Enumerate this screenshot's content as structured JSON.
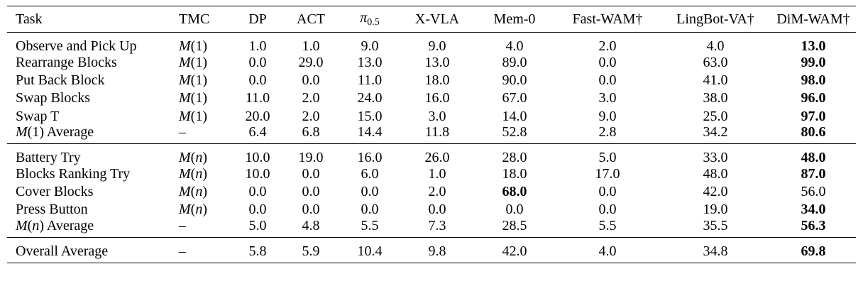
{
  "table": {
    "headers": {
      "task": "Task",
      "tmc": "TMC",
      "dp": "DP",
      "act": "ACT",
      "pi_base": "π",
      "pi_sub": "0.5",
      "xvla": "X-VLA",
      "mem0": "Mem-0",
      "fastwam": "Fast-WAM†",
      "lingbot": "LingBot-VA†",
      "dimwam": "DiM-WAM†"
    },
    "groups": [
      {
        "rows": [
          {
            "task": "Observe and Pick Up",
            "tmc": "M(1)",
            "values": [
              "1.0",
              "1.0",
              "9.0",
              "9.0",
              "4.0",
              "2.0",
              "4.0",
              "13.0"
            ],
            "best": 7
          },
          {
            "task": "Rearrange Blocks",
            "tmc": "M(1)",
            "values": [
              "0.0",
              "29.0",
              "13.0",
              "13.0",
              "89.0",
              "0.0",
              "63.0",
              "99.0"
            ],
            "best": 7
          },
          {
            "task": "Put Back Block",
            "tmc": "M(1)",
            "values": [
              "0.0",
              "0.0",
              "11.0",
              "18.0",
              "90.0",
              "0.0",
              "41.0",
              "98.0"
            ],
            "best": 7
          },
          {
            "task": "Swap Blocks",
            "tmc": "M(1)",
            "values": [
              "11.0",
              "2.0",
              "24.0",
              "16.0",
              "67.0",
              "3.0",
              "38.0",
              "96.0"
            ],
            "best": 7
          },
          {
            "task": "Swap T",
            "tmc": "M(1)",
            "values": [
              "20.0",
              "2.0",
              "15.0",
              "3.0",
              "14.0",
              "9.0",
              "25.0",
              "97.0"
            ],
            "best": 7
          },
          {
            "task": "M(1) Average",
            "tmc": "–",
            "values": [
              "6.4",
              "6.8",
              "14.4",
              "11.8",
              "52.8",
              "2.8",
              "34.2",
              "80.6"
            ],
            "best": 7
          }
        ]
      },
      {
        "rows": [
          {
            "task": "Battery Try",
            "tmc": "M(n)",
            "values": [
              "10.0",
              "19.0",
              "16.0",
              "26.0",
              "28.0",
              "5.0",
              "33.0",
              "48.0"
            ],
            "best": 7
          },
          {
            "task": "Blocks Ranking Try",
            "tmc": "M(n)",
            "values": [
              "10.0",
              "0.0",
              "6.0",
              "1.0",
              "18.0",
              "17.0",
              "48.0",
              "87.0"
            ],
            "best": 7
          },
          {
            "task": "Cover Blocks",
            "tmc": "M(n)",
            "values": [
              "0.0",
              "0.0",
              "0.0",
              "2.0",
              "68.0",
              "0.0",
              "42.0",
              "56.0"
            ],
            "best": 4
          },
          {
            "task": "Press Button",
            "tmc": "M(n)",
            "values": [
              "0.0",
              "0.0",
              "0.0",
              "0.0",
              "0.0",
              "0.0",
              "19.0",
              "34.0"
            ],
            "best": 7
          },
          {
            "task": "M(n) Average",
            "tmc": "–",
            "values": [
              "5.0",
              "4.8",
              "5.5",
              "7.3",
              "28.5",
              "5.5",
              "35.5",
              "56.3"
            ],
            "best": 7
          }
        ]
      },
      {
        "rows": [
          {
            "task": "Overall Average",
            "tmc": "–",
            "values": [
              "5.8",
              "5.9",
              "10.4",
              "9.8",
              "42.0",
              "4.0",
              "34.8",
              "69.8"
            ],
            "best": 7
          }
        ]
      }
    ]
  }
}
